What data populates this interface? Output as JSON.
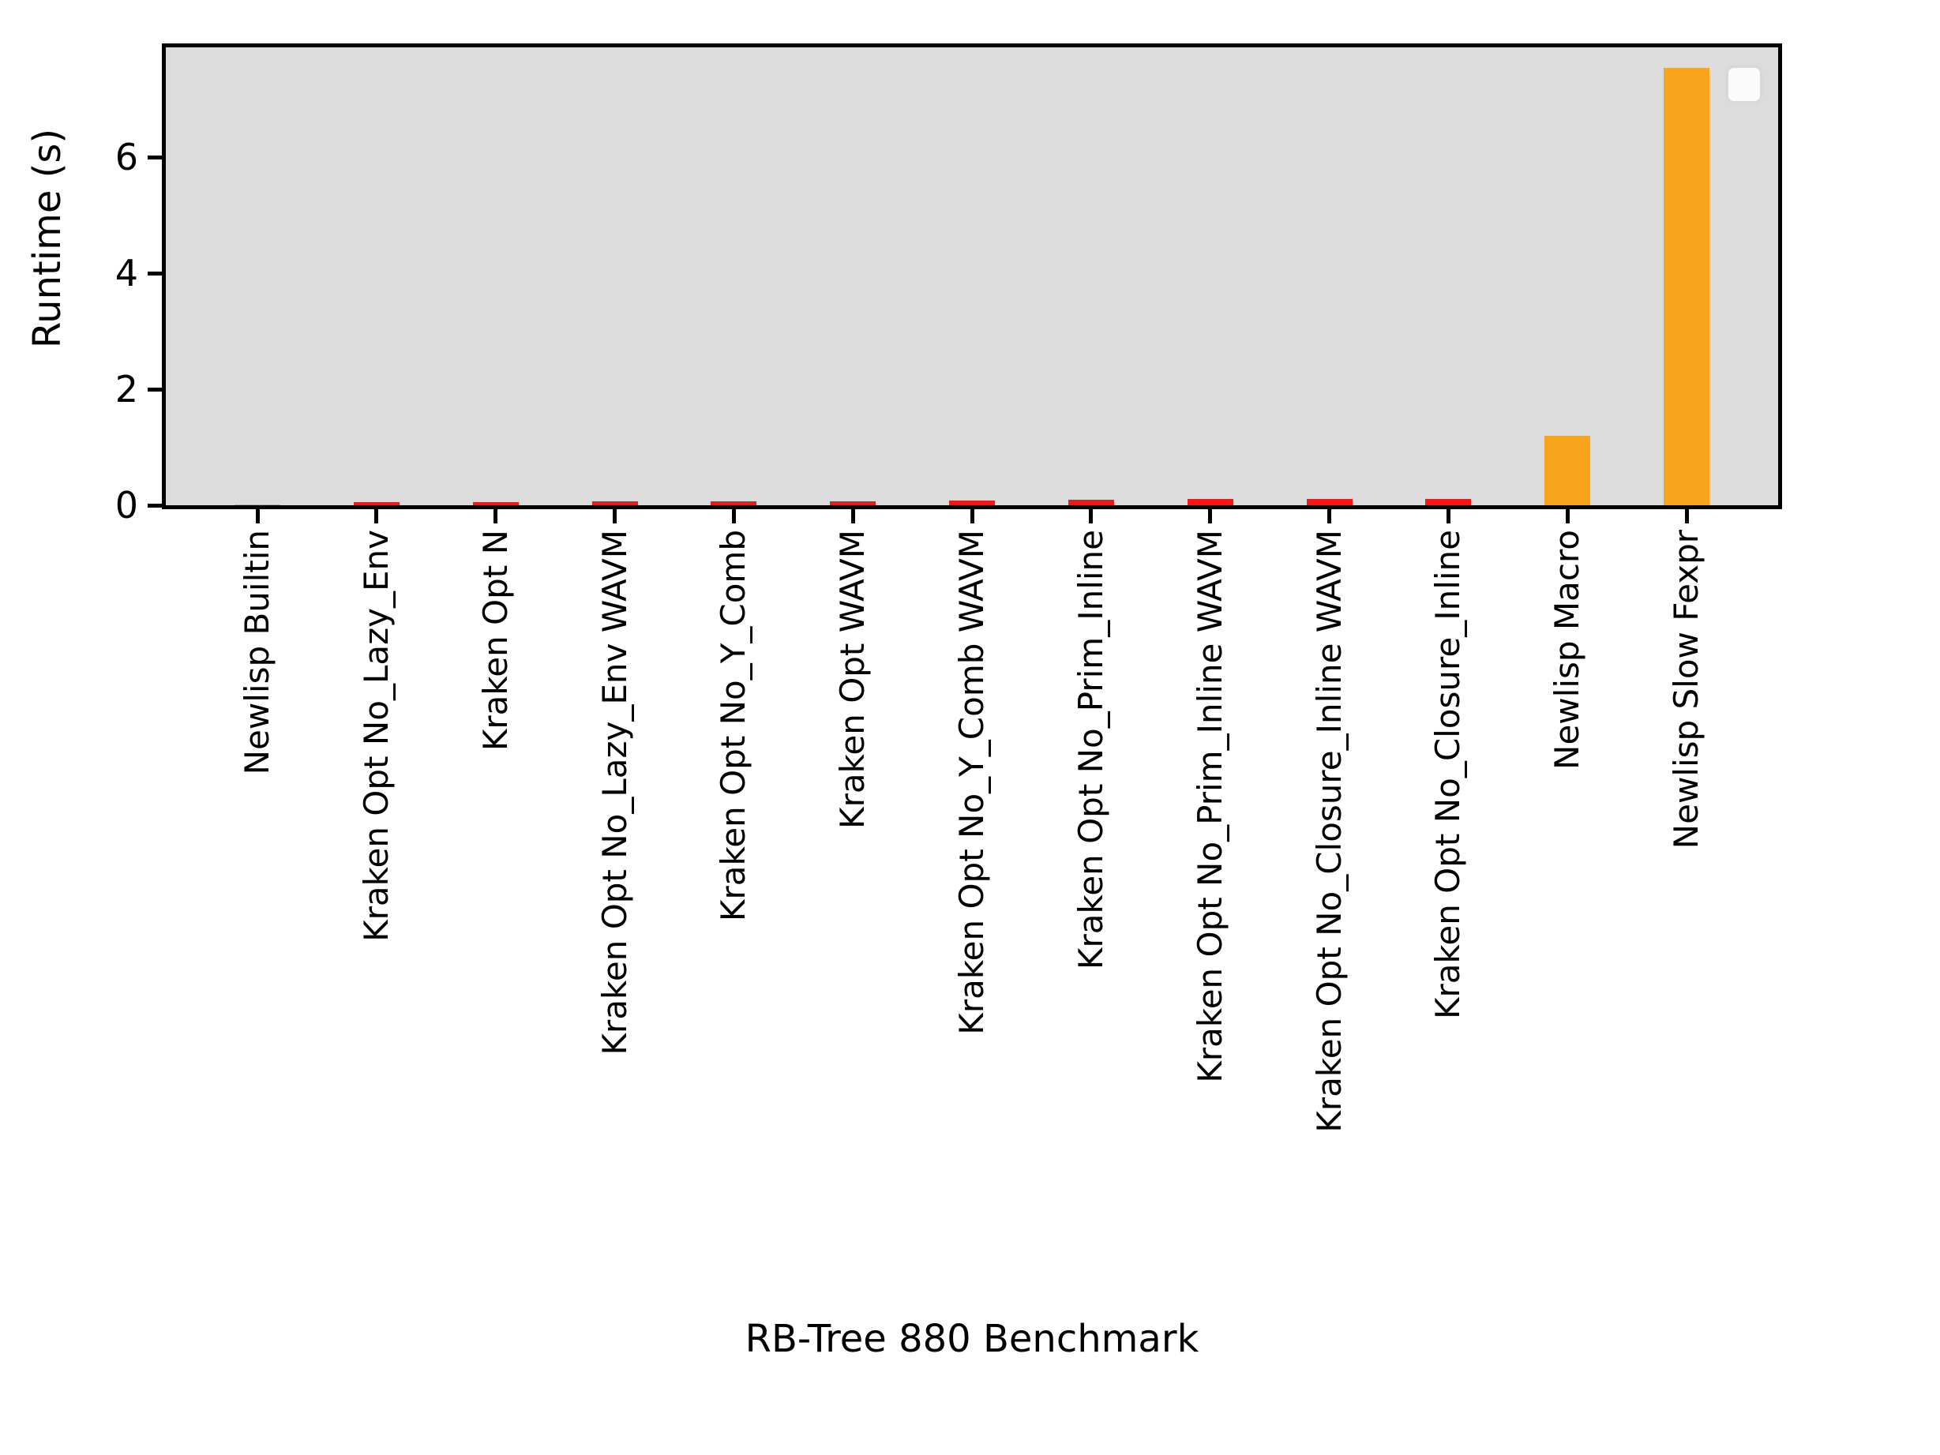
{
  "figure": {
    "background": "#ffffff",
    "plot_background": "#dcdcdc",
    "spine_color": "#000000"
  },
  "legend": {
    "visible": true,
    "entries": [],
    "position": "upper right",
    "fill": "#fbfbfb",
    "edge": "#d8d8d8"
  },
  "chart_data": {
    "type": "bar",
    "title": "",
    "xlabel": "RB-Tree 880 Benchmark",
    "ylabel": "Runtime (s)",
    "ylim": [
      0,
      7.9
    ],
    "yticks": [
      "0",
      "2",
      "4",
      "6"
    ],
    "ytick_values": [
      0,
      2,
      4,
      6
    ],
    "grid": false,
    "x_tick_label_rotation": 90,
    "categories": [
      "Newlisp Builtin",
      "Kraken Opt No_Lazy_Env",
      "Kraken Opt N",
      "Kraken Opt No_Lazy_Env WAVM",
      "Kraken Opt No_Y_Comb",
      "Kraken Opt WAVM",
      "Kraken Opt No_Y_Comb WAVM",
      "Kraken Opt No_Prim_Inline",
      "Kraken Opt No_Prim_Inline WAVM",
      "Kraken Opt No_Closure_Inline WAVM",
      "Kraken Opt No_Closure_Inline",
      "Newlisp Macro",
      "Newlisp Slow Fexpr"
    ],
    "values": [
      0.01,
      0.06,
      0.06,
      0.07,
      0.07,
      0.07,
      0.08,
      0.1,
      0.11,
      0.11,
      0.11,
      1.2,
      7.55
    ],
    "bar_colors": [
      "#f9a51b",
      "#fa1414",
      "#fa1414",
      "#fa1414",
      "#fa1414",
      "#fa1414",
      "#fa1414",
      "#fa1414",
      "#fa1414",
      "#fa1414",
      "#fa1414",
      "#f9a51b",
      "#f9a51b"
    ],
    "color_legend": {
      "red_bars": "#fa1414",
      "orange_bars": "#f9a51b"
    }
  }
}
